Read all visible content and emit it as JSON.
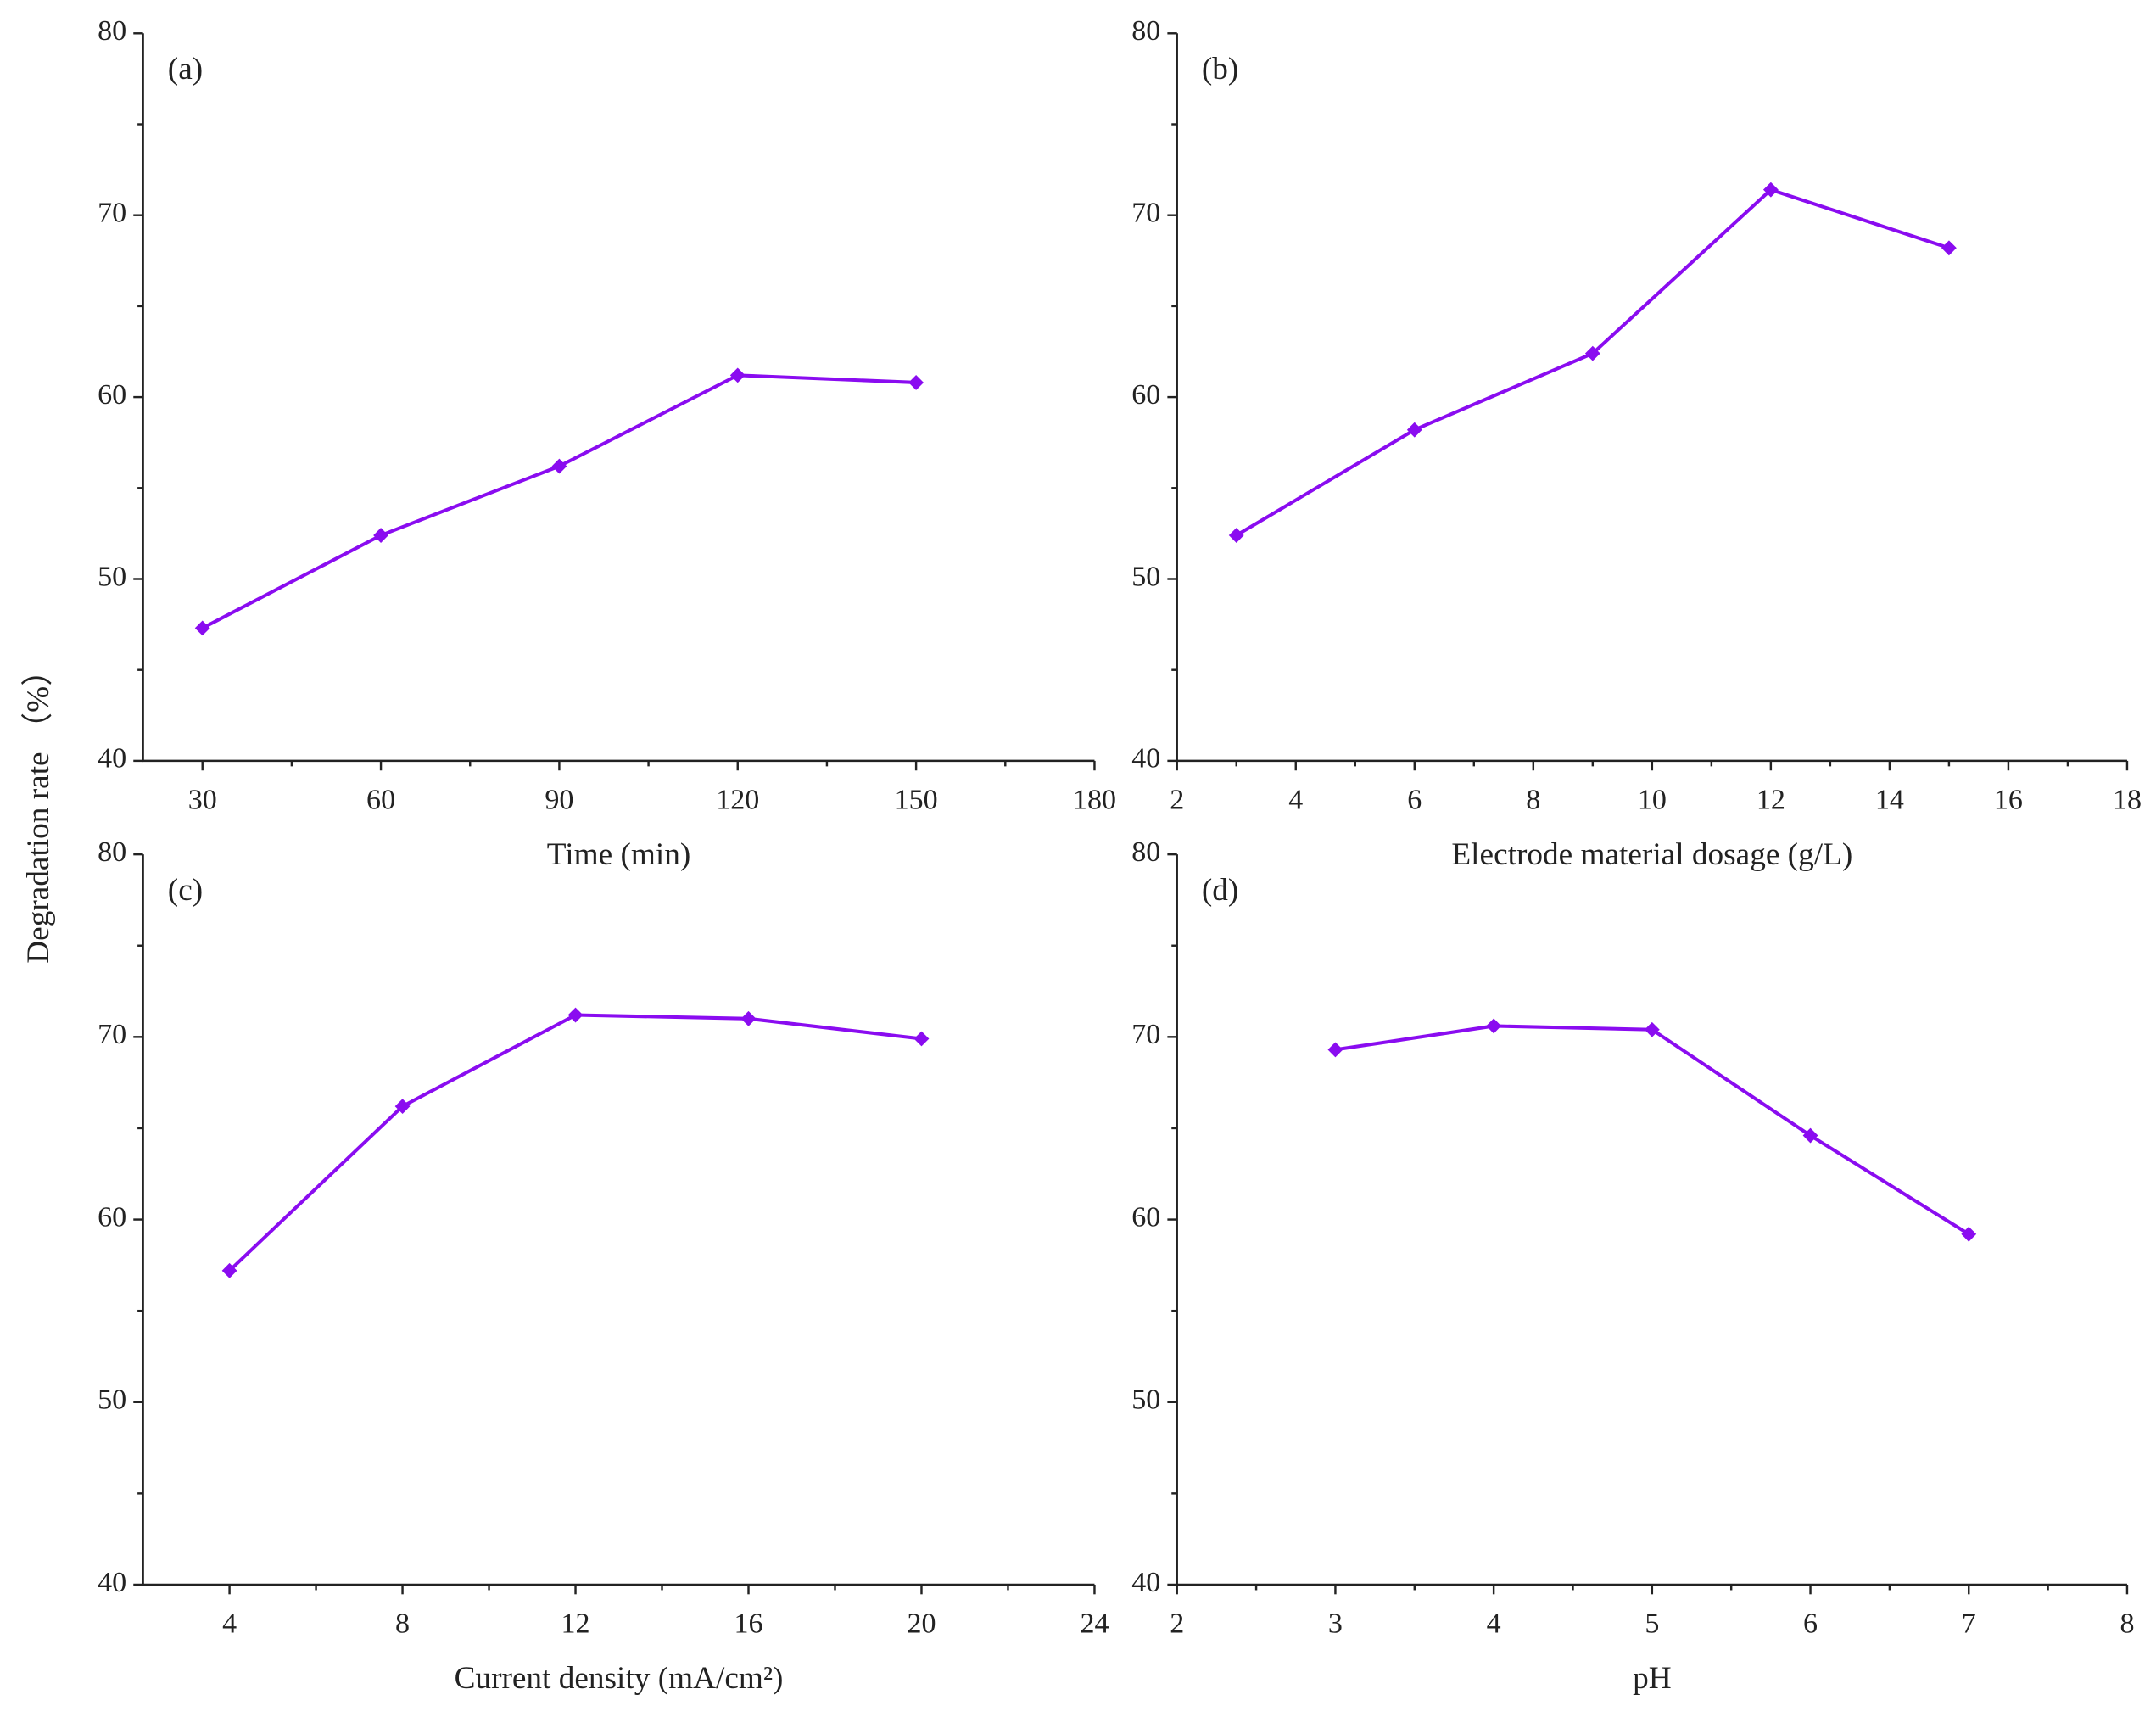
{
  "ylabel": "Degradation rate （%）",
  "chart_data": [
    {
      "type": "line",
      "annotation": "(a)",
      "xlabel": "Time (min)",
      "x": [
        30,
        60,
        90,
        120,
        150
      ],
      "series": [
        {
          "color": "#8a0cf0",
          "values": [
            47.3,
            52.4,
            56.2,
            61.2,
            60.8
          ]
        }
      ],
      "xlim": [
        20,
        180
      ],
      "xticks": [
        30,
        60,
        90,
        120,
        150,
        180
      ],
      "ylim": [
        40,
        80
      ],
      "yticks": [
        40,
        50,
        60,
        70,
        80
      ],
      "minor_ticks": true
    },
    {
      "type": "line",
      "annotation": "(b)",
      "xlabel": "Electrode material dosage (g/L)",
      "x": [
        3,
        6,
        9,
        12,
        15
      ],
      "series": [
        {
          "color": "#8a0cf0",
          "values": [
            52.4,
            58.2,
            62.4,
            71.4,
            68.2
          ]
        }
      ],
      "xlim": [
        2,
        18
      ],
      "xticks": [
        2,
        4,
        6,
        8,
        10,
        12,
        14,
        16,
        18
      ],
      "ylim": [
        40,
        80
      ],
      "yticks": [
        40,
        50,
        60,
        70,
        80
      ],
      "minor_ticks": true
    },
    {
      "type": "line",
      "annotation": "(c)",
      "xlabel": "Current density (mA/cm²)",
      "x": [
        4,
        8,
        12,
        16,
        20
      ],
      "series": [
        {
          "color": "#8a0cf0",
          "values": [
            57.2,
            66.2,
            71.2,
            71.0,
            69.9
          ]
        }
      ],
      "xlim": [
        2,
        24
      ],
      "xticks": [
        4,
        8,
        12,
        16,
        20,
        24
      ],
      "ylim": [
        40,
        80
      ],
      "yticks": [
        40,
        50,
        60,
        70,
        80
      ],
      "minor_ticks": true
    },
    {
      "type": "line",
      "annotation": "(d)",
      "xlabel": "pH",
      "x": [
        3,
        4,
        5,
        6,
        7
      ],
      "series": [
        {
          "color": "#8a0cf0",
          "values": [
            69.3,
            70.6,
            70.4,
            64.6,
            59.2
          ]
        }
      ],
      "xlim": [
        2,
        8
      ],
      "xticks": [
        2,
        3,
        4,
        5,
        6,
        7,
        8
      ],
      "ylim": [
        40,
        80
      ],
      "yticks": [
        40,
        50,
        60,
        70,
        80
      ],
      "minor_ticks": true
    }
  ]
}
